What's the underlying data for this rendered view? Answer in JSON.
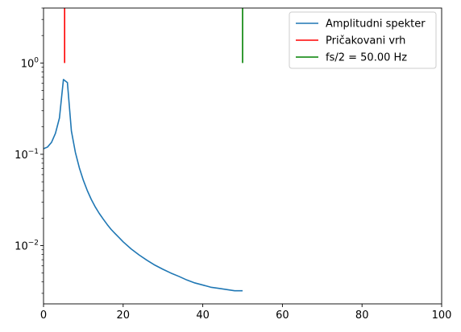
{
  "chart_data": {
    "type": "line",
    "title": "",
    "xlabel": "",
    "ylabel": "",
    "xlim": [
      0,
      100
    ],
    "ylim": [
      0.0023,
      4.0
    ],
    "yscale": "log",
    "grid": false,
    "legend_position": "top-right",
    "x_ticks": [
      0,
      20,
      40,
      60,
      80,
      100
    ],
    "x_tick_labels": [
      "0",
      "20",
      "40",
      "60",
      "80",
      "100"
    ],
    "y_ticks": [
      0.01,
      0.1,
      1
    ],
    "y_tick_labels": [
      "10",
      "10",
      "10"
    ],
    "y_tick_exponents": [
      "−2",
      "−1",
      "0"
    ],
    "series": [
      {
        "name": "Amplitudni spekter",
        "kind": "line",
        "color": "#1f77b4",
        "x": [
          0,
          1,
          2,
          3,
          4,
          5,
          6,
          7,
          8,
          9,
          10,
          11,
          12,
          13,
          14,
          15,
          16,
          17,
          18,
          19,
          20,
          22,
          24,
          26,
          28,
          30,
          32,
          34,
          36,
          38,
          40,
          42,
          44,
          46,
          48,
          50
        ],
        "y": [
          0.115,
          0.12,
          0.135,
          0.17,
          0.25,
          0.66,
          0.61,
          0.18,
          0.105,
          0.071,
          0.052,
          0.04,
          0.032,
          0.0265,
          0.0225,
          0.0195,
          0.017,
          0.015,
          0.0135,
          0.0122,
          0.011,
          0.0092,
          0.0079,
          0.0069,
          0.0061,
          0.0055,
          0.005,
          0.0046,
          0.0042,
          0.0039,
          0.0037,
          0.0035,
          0.0034,
          0.0033,
          0.0032,
          0.0032
        ]
      },
      {
        "name": "Pričakovani vrh",
        "kind": "vline",
        "color": "#ff0000",
        "x": 5.3,
        "y_range": [
          1,
          4.0
        ]
      },
      {
        "name": "fs/2 = 50.00 Hz",
        "kind": "vline",
        "color": "#008000",
        "x": 50,
        "y_range": [
          1,
          4.0
        ]
      }
    ]
  }
}
